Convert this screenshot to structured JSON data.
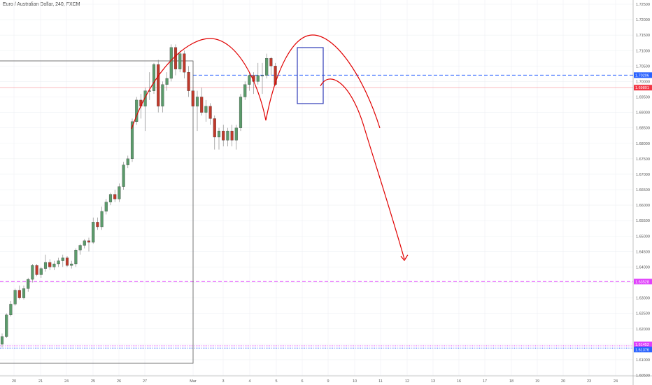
{
  "chart_data": {
    "type": "candlestick",
    "title": "Euro / Australian Dollar, 240, FXCM",
    "ylim": [
      1.6,
      1.725
    ],
    "y_ticks": [
      "1.72500",
      "1.72000",
      "1.71500",
      "1.71000",
      "1.70500",
      "1.70000",
      "1.69500",
      "1.69000",
      "1.68500",
      "1.68000",
      "1.67500",
      "1.67000",
      "1.66500",
      "1.66000",
      "1.65500",
      "1.65000",
      "1.64500",
      "1.64000",
      "1.63500",
      "1.63000",
      "1.62500",
      "1.62000",
      "1.61500",
      "1.61000",
      "1.60500"
    ],
    "x_ticks": [
      "20",
      "21",
      "24",
      "25",
      "26",
      "27",
      "Mar",
      "3",
      "4",
      "5",
      "6",
      "9",
      "10",
      "11",
      "12",
      "13",
      "16",
      "17",
      "18",
      "19",
      "20",
      "23",
      "24"
    ],
    "candles": [
      {
        "o": 1.615,
        "h": 1.6185,
        "l": 1.614,
        "c": 1.6175
      },
      {
        "o": 1.6175,
        "h": 1.625,
        "l": 1.617,
        "c": 1.6245
      },
      {
        "o": 1.6245,
        "h": 1.629,
        "l": 1.624,
        "c": 1.628
      },
      {
        "o": 1.628,
        "h": 1.633,
        "l": 1.6275,
        "c": 1.6325
      },
      {
        "o": 1.6325,
        "h": 1.634,
        "l": 1.6295,
        "c": 1.63
      },
      {
        "o": 1.63,
        "h": 1.634,
        "l": 1.6295,
        "c": 1.633
      },
      {
        "o": 1.633,
        "h": 1.6365,
        "l": 1.632,
        "c": 1.636
      },
      {
        "o": 1.636,
        "h": 1.641,
        "l": 1.635,
        "c": 1.6405
      },
      {
        "o": 1.6405,
        "h": 1.641,
        "l": 1.637,
        "c": 1.6375
      },
      {
        "o": 1.6375,
        "h": 1.64,
        "l": 1.6365,
        "c": 1.6395
      },
      {
        "o": 1.6395,
        "h": 1.644,
        "l": 1.6385,
        "c": 1.6415
      },
      {
        "o": 1.6415,
        "h": 1.6425,
        "l": 1.639,
        "c": 1.64
      },
      {
        "o": 1.64,
        "h": 1.642,
        "l": 1.639,
        "c": 1.641
      },
      {
        "o": 1.641,
        "h": 1.643,
        "l": 1.64,
        "c": 1.642
      },
      {
        "o": 1.642,
        "h": 1.644,
        "l": 1.64,
        "c": 1.643
      },
      {
        "o": 1.643,
        "h": 1.6435,
        "l": 1.64,
        "c": 1.6405
      },
      {
        "o": 1.6405,
        "h": 1.642,
        "l": 1.6395,
        "c": 1.641
      },
      {
        "o": 1.641,
        "h": 1.646,
        "l": 1.64,
        "c": 1.6455
      },
      {
        "o": 1.6455,
        "h": 1.6475,
        "l": 1.644,
        "c": 1.647
      },
      {
        "o": 1.647,
        "h": 1.649,
        "l": 1.646,
        "c": 1.6485
      },
      {
        "o": 1.6485,
        "h": 1.6495,
        "l": 1.645,
        "c": 1.648
      },
      {
        "o": 1.648,
        "h": 1.656,
        "l": 1.6475,
        "c": 1.6545
      },
      {
        "o": 1.6545,
        "h": 1.656,
        "l": 1.652,
        "c": 1.653
      },
      {
        "o": 1.653,
        "h": 1.6595,
        "l": 1.652,
        "c": 1.658
      },
      {
        "o": 1.658,
        "h": 1.662,
        "l": 1.657,
        "c": 1.661
      },
      {
        "o": 1.661,
        "h": 1.664,
        "l": 1.66,
        "c": 1.6635
      },
      {
        "o": 1.6635,
        "h": 1.665,
        "l": 1.661,
        "c": 1.662
      },
      {
        "o": 1.662,
        "h": 1.667,
        "l": 1.661,
        "c": 1.666
      },
      {
        "o": 1.666,
        "h": 1.674,
        "l": 1.665,
        "c": 1.673
      },
      {
        "o": 1.673,
        "h": 1.676,
        "l": 1.672,
        "c": 1.675
      },
      {
        "o": 1.675,
        "h": 1.688,
        "l": 1.674,
        "c": 1.687
      },
      {
        "o": 1.687,
        "h": 1.695,
        "l": 1.686,
        "c": 1.694
      },
      {
        "o": 1.694,
        "h": 1.696,
        "l": 1.688,
        "c": 1.692
      },
      {
        "o": 1.692,
        "h": 1.698,
        "l": 1.684,
        "c": 1.697
      },
      {
        "o": 1.697,
        "h": 1.703,
        "l": 1.694,
        "c": 1.697
      },
      {
        "o": 1.697,
        "h": 1.706,
        "l": 1.696,
        "c": 1.7055
      },
      {
        "o": 1.7055,
        "h": 1.707,
        "l": 1.69,
        "c": 1.692
      },
      {
        "o": 1.692,
        "h": 1.7,
        "l": 1.69,
        "c": 1.699
      },
      {
        "o": 1.699,
        "h": 1.703,
        "l": 1.697,
        "c": 1.701
      },
      {
        "o": 1.701,
        "h": 1.712,
        "l": 1.7,
        "c": 1.711
      },
      {
        "o": 1.711,
        "h": 1.712,
        "l": 1.702,
        "c": 1.704
      },
      {
        "o": 1.704,
        "h": 1.71,
        "l": 1.703,
        "c": 1.709
      },
      {
        "o": 1.709,
        "h": 1.71,
        "l": 1.701,
        "c": 1.703
      },
      {
        "o": 1.703,
        "h": 1.705,
        "l": 1.695,
        "c": 1.697
      },
      {
        "o": 1.697,
        "h": 1.699,
        "l": 1.69,
        "c": 1.692
      },
      {
        "o": 1.692,
        "h": 1.697,
        "l": 1.684,
        "c": 1.695
      },
      {
        "o": 1.695,
        "h": 1.698,
        "l": 1.689,
        "c": 1.69
      },
      {
        "o": 1.69,
        "h": 1.694,
        "l": 1.687,
        "c": 1.692
      },
      {
        "o": 1.692,
        "h": 1.693,
        "l": 1.686,
        "c": 1.688
      },
      {
        "o": 1.688,
        "h": 1.689,
        "l": 1.678,
        "c": 1.682
      },
      {
        "o": 1.682,
        "h": 1.685,
        "l": 1.678,
        "c": 1.684
      },
      {
        "o": 1.684,
        "h": 1.686,
        "l": 1.679,
        "c": 1.681
      },
      {
        "o": 1.681,
        "h": 1.685,
        "l": 1.679,
        "c": 1.684
      },
      {
        "o": 1.684,
        "h": 1.686,
        "l": 1.679,
        "c": 1.681
      },
      {
        "o": 1.681,
        "h": 1.686,
        "l": 1.678,
        "c": 1.685
      },
      {
        "o": 1.685,
        "h": 1.696,
        "l": 1.684,
        "c": 1.695
      },
      {
        "o": 1.695,
        "h": 1.7,
        "l": 1.694,
        "c": 1.699
      },
      {
        "o": 1.699,
        "h": 1.703,
        "l": 1.697,
        "c": 1.702
      },
      {
        "o": 1.702,
        "h": 1.703,
        "l": 1.696,
        "c": 1.7
      },
      {
        "o": 1.7,
        "h": 1.706,
        "l": 1.699,
        "c": 1.702
      },
      {
        "o": 1.702,
        "h": 1.706,
        "l": 1.696,
        "c": 1.702
      },
      {
        "o": 1.702,
        "h": 1.709,
        "l": 1.701,
        "c": 1.7075
      },
      {
        "o": 1.7075,
        "h": 1.708,
        "l": 1.702,
        "c": 1.705
      },
      {
        "o": 1.705,
        "h": 1.706,
        "l": 1.6985,
        "c": 1.699
      }
    ],
    "horizontal_lines": [
      {
        "price": 1.70206,
        "label": "1.70206",
        "color": "#2962ff",
        "style": "dashed"
      },
      {
        "price": 1.69801,
        "label": "1.69801",
        "color": "#f23645",
        "style": "solid"
      },
      {
        "price": 1.63528,
        "label": "1.63528",
        "color": "#e040fb",
        "style": "dashed"
      },
      {
        "price": 1.61452,
        "label": "1.61452",
        "color": "#e040fb",
        "style": "dotted"
      },
      {
        "price": 1.61376,
        "label": "1.61376",
        "color": "#2962ff",
        "style": "dotted"
      }
    ],
    "colors": {
      "up": "#26a69a",
      "up_body": "#5b9b6b",
      "down": "#c0392b",
      "annotation": "#e00000",
      "box": "#2e3bb8"
    },
    "grid": true,
    "legend": "none"
  }
}
